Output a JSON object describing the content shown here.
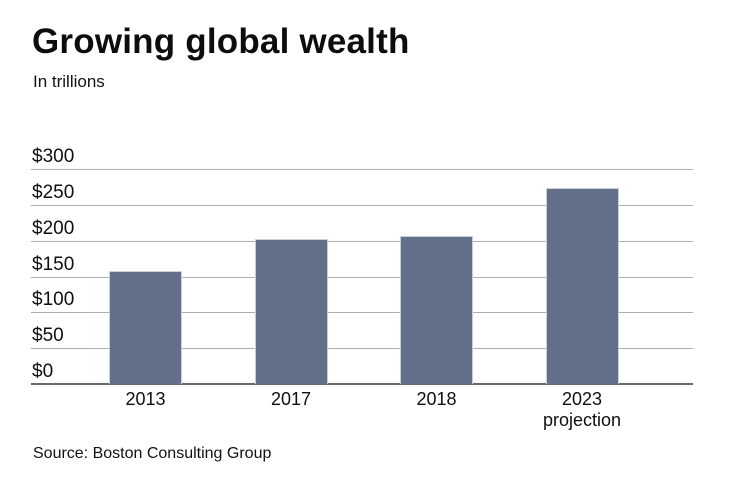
{
  "header": {
    "title": "Growing global wealth",
    "subtitle": "In trillions"
  },
  "chart_data": {
    "type": "bar",
    "title": "Growing global wealth",
    "subtitle": "In trillions",
    "categories": [
      "2013",
      "2017",
      "2018",
      "2023"
    ],
    "category_line2": [
      "",
      "",
      "",
      "projection"
    ],
    "values": [
      158,
      202,
      206,
      273
    ],
    "yticks": [
      0,
      50,
      100,
      150,
      200,
      250,
      300
    ],
    "ytick_labels": [
      "$0",
      "$50",
      "$100",
      "$150",
      "$200",
      "$250",
      "$300"
    ],
    "ylim": [
      0,
      300
    ],
    "grid": "horizontal",
    "legend": "none",
    "bar_color": "#64708a",
    "bar_edge_color": "#c6d0d9",
    "grid_color": "#afafaf",
    "axis_color": "#696969"
  },
  "footer": {
    "source": "Source: Boston Consulting Group"
  }
}
